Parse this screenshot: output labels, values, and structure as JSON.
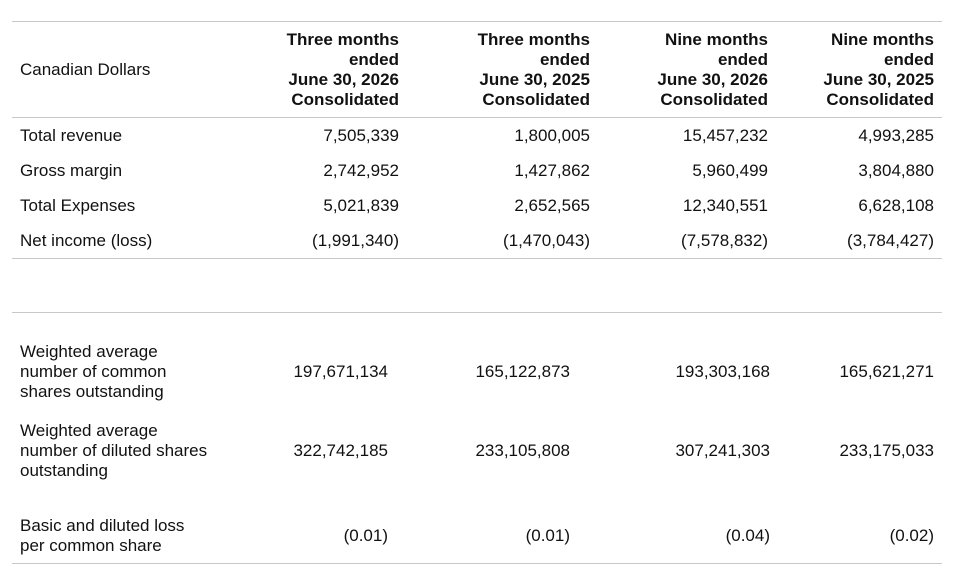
{
  "table": {
    "header": {
      "label": "Canadian Dollars",
      "columns": [
        "Three months\nended\nJune 30, 2026\nConsolidated",
        "Three months\nended\nJune 30, 2025\nConsolidated",
        "Nine months\nended\nJune 30, 2026\nConsolidated",
        "Nine months\nended\nJune 30, 2025\nConsolidated"
      ]
    },
    "rows": [
      {
        "label": "Total revenue",
        "values": [
          "7,505,339",
          "1,800,005",
          "15,457,232",
          "4,993,285"
        ]
      },
      {
        "label": "Gross margin",
        "values": [
          "2,742,952",
          "1,427,862",
          "5,960,499",
          "3,804,880"
        ]
      },
      {
        "label": "Total Expenses",
        "values": [
          "5,021,839",
          "2,652,565",
          "12,340,551",
          "6,628,108"
        ]
      },
      {
        "label": "Net income (loss)",
        "values": [
          "(1,991,340)",
          "(1,470,043)",
          "(7,578,832)",
          "(3,784,427)"
        ]
      }
    ],
    "shares_rows": [
      {
        "label": "Weighted average\nnumber of common\nshares outstanding",
        "values": [
          "197,671,134",
          "165,122,873",
          "193,303,168",
          "165,621,271"
        ]
      },
      {
        "label": "Weighted average\nnumber of diluted shares\noutstanding",
        "values": [
          "322,742,185",
          "233,105,808",
          "307,241,303",
          "233,175,033"
        ]
      },
      {
        "label": "Basic and diluted loss\nper common share",
        "values": [
          "(0.01)",
          "(0.01)",
          "(0.04)",
          "(0.02)"
        ]
      }
    ]
  }
}
